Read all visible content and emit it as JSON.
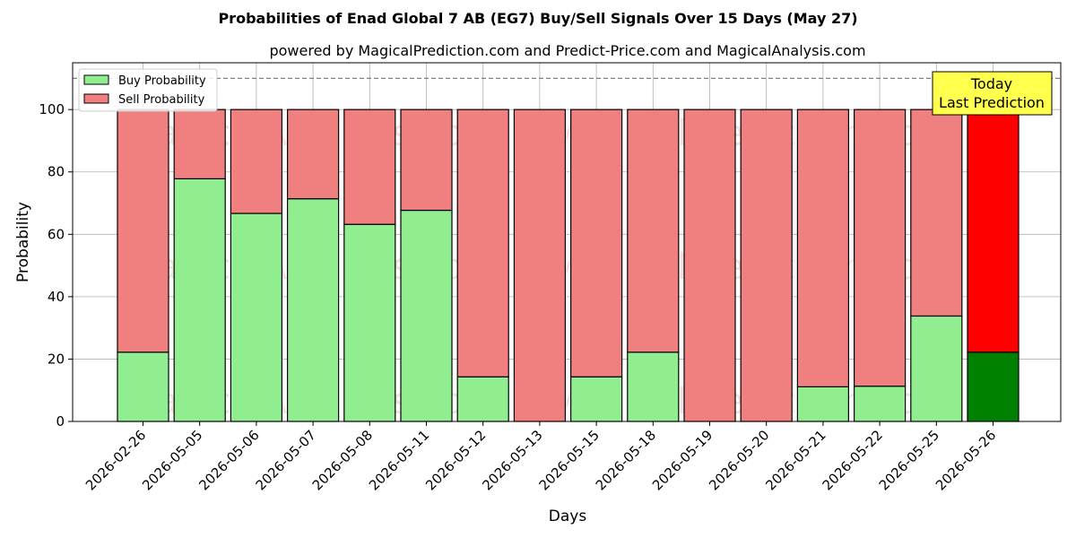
{
  "chart_data": {
    "type": "bar",
    "stacked": true,
    "title": "Probabilities of Enad Global 7 AB (EG7) Buy/Sell Signals Over 15 Days (May 27)",
    "subtitle": "powered by MagicalPrediction.com and Predict-Price.com and MagicalAnalysis.com",
    "xlabel": "Days",
    "ylabel": "Probability",
    "ylim": [
      0,
      115
    ],
    "yticks": [
      0,
      20,
      40,
      60,
      80,
      100
    ],
    "grid": true,
    "legend_position": "top-left",
    "categories": [
      "2026-02-26",
      "2026-05-05",
      "2026-05-06",
      "2026-05-07",
      "2026-05-08",
      "2026-05-11",
      "2026-05-12",
      "2026-05-13",
      "2026-05-15",
      "2026-05-18",
      "2026-05-19",
      "2026-05-20",
      "2026-05-21",
      "2026-05-22",
      "2026-05-25",
      "2026-05-26"
    ],
    "series": [
      {
        "name": "Buy Probability",
        "color": "#90ee90",
        "values": [
          22.2,
          77.8,
          66.7,
          71.4,
          63.2,
          67.7,
          14.3,
          0,
          14.3,
          22.2,
          0,
          0,
          11.1,
          11.3,
          33.8,
          22.2
        ]
      },
      {
        "name": "Sell Probability",
        "color": "#f08080",
        "values": [
          77.8,
          22.2,
          33.3,
          28.6,
          36.8,
          32.3,
          85.7,
          100,
          85.7,
          77.8,
          100,
          100,
          88.9,
          88.7,
          66.2,
          77.8
        ]
      }
    ],
    "highlight": {
      "index": 15,
      "buy_color": "#008000",
      "sell_color": "#ff0000"
    },
    "reference_line": {
      "y": 110,
      "style": "dashed",
      "color": "#808080"
    },
    "annotation": {
      "lines": [
        "Today",
        "Last Prediction"
      ],
      "background": "#ffff4d"
    },
    "watermarks": [
      "MagicalAnalysis.com",
      "MagicalPrediction.com"
    ]
  }
}
